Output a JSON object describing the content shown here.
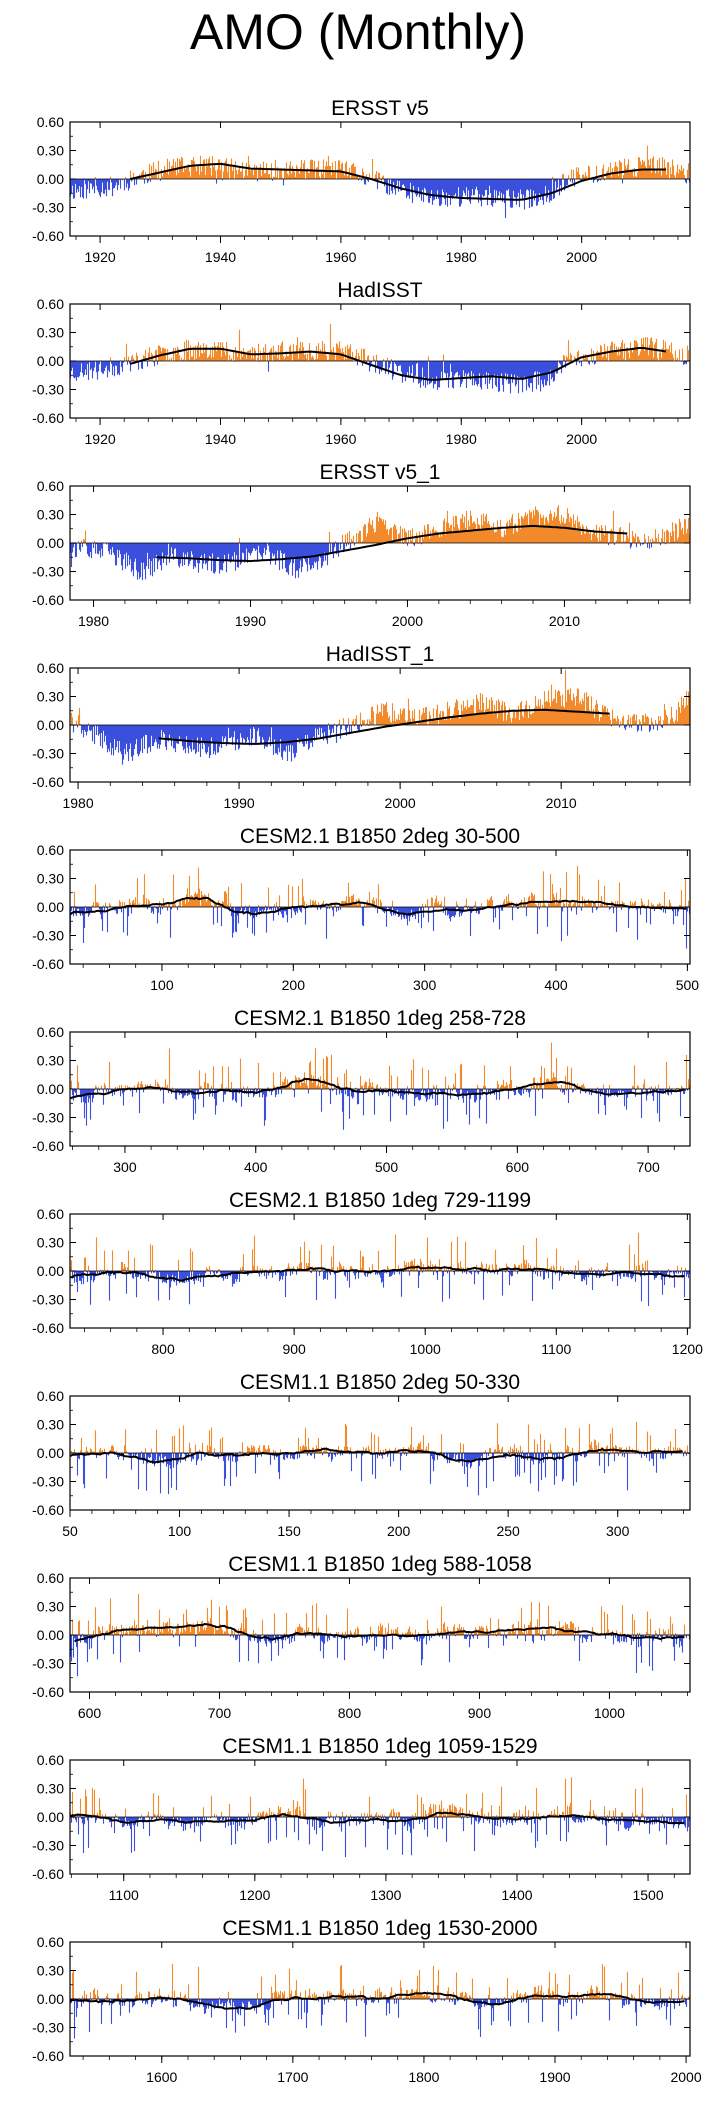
{
  "title": "AMO (Monthly)",
  "colors": {
    "positive": "#f28a2b",
    "negative": "#3a4fdc",
    "smooth": "#000000",
    "axis": "#000000"
  },
  "chart_data": [
    {
      "type": "bar",
      "title": "ERSST v5",
      "kind": "obs",
      "seed": 11,
      "xlim": [
        1915,
        2018
      ],
      "ylim": [
        -0.6,
        0.6
      ],
      "yticks": [
        0.6,
        0.3,
        0.0,
        -0.3,
        -0.6
      ],
      "yticklabels": [
        "0.60",
        "0.30",
        "0.00",
        "-0.30",
        "-0.60"
      ],
      "xticks": [
        1920,
        1940,
        1960,
        1980,
        2000
      ],
      "xticklabels": [
        "1920",
        "1940",
        "1960",
        "1980",
        "2000"
      ],
      "smooth_span": [
        1925,
        2014
      ],
      "trend": [
        [
          1915,
          -0.12
        ],
        [
          1922,
          -0.08
        ],
        [
          1926,
          0.02
        ],
        [
          1932,
          0.12
        ],
        [
          1938,
          0.14
        ],
        [
          1945,
          0.08
        ],
        [
          1952,
          0.1
        ],
        [
          1958,
          0.1
        ],
        [
          1962,
          0.07
        ],
        [
          1966,
          -0.02
        ],
        [
          1970,
          -0.12
        ],
        [
          1975,
          -0.2
        ],
        [
          1980,
          -0.18
        ],
        [
          1986,
          -0.2
        ],
        [
          1990,
          -0.22
        ],
        [
          1994,
          -0.18
        ],
        [
          1998,
          0.0
        ],
        [
          2002,
          0.06
        ],
        [
          2006,
          0.1
        ],
        [
          2010,
          0.14
        ],
        [
          2014,
          0.12
        ],
        [
          2018,
          0.05
        ]
      ],
      "smooth": [
        [
          1925,
          0.0
        ],
        [
          1930,
          0.07
        ],
        [
          1935,
          0.14
        ],
        [
          1940,
          0.16
        ],
        [
          1945,
          0.11
        ],
        [
          1950,
          0.1
        ],
        [
          1955,
          0.09
        ],
        [
          1960,
          0.08
        ],
        [
          1965,
          0.0
        ],
        [
          1970,
          -0.1
        ],
        [
          1975,
          -0.17
        ],
        [
          1980,
          -0.2
        ],
        [
          1985,
          -0.21
        ],
        [
          1990,
          -0.22
        ],
        [
          1995,
          -0.15
        ],
        [
          2000,
          -0.02
        ],
        [
          2005,
          0.06
        ],
        [
          2010,
          0.1
        ],
        [
          2014,
          0.1
        ]
      ]
    },
    {
      "type": "bar",
      "title": "HadISST",
      "kind": "obs",
      "seed": 23,
      "xlim": [
        1915,
        2018
      ],
      "ylim": [
        -0.6,
        0.6
      ],
      "yticks": [
        0.6,
        0.3,
        0.0,
        -0.3,
        -0.6
      ],
      "yticklabels": [
        "0.60",
        "0.30",
        "0.00",
        "-0.30",
        "-0.60"
      ],
      "xticks": [
        1920,
        1940,
        1960,
        1980,
        2000
      ],
      "xticklabels": [
        "1920",
        "1940",
        "1960",
        "1980",
        "2000"
      ],
      "smooth_span": [
        1925,
        2014
      ],
      "trend": [
        [
          1915,
          -0.12
        ],
        [
          1920,
          -0.1
        ],
        [
          1926,
          0.0
        ],
        [
          1932,
          0.1
        ],
        [
          1938,
          0.14
        ],
        [
          1944,
          0.08
        ],
        [
          1950,
          0.1
        ],
        [
          1958,
          0.12
        ],
        [
          1962,
          0.08
        ],
        [
          1966,
          -0.04
        ],
        [
          1970,
          -0.12
        ],
        [
          1975,
          -0.2
        ],
        [
          1980,
          -0.18
        ],
        [
          1986,
          -0.22
        ],
        [
          1990,
          -0.24
        ],
        [
          1994,
          -0.2
        ],
        [
          1998,
          0.02
        ],
        [
          2002,
          0.06
        ],
        [
          2006,
          0.12
        ],
        [
          2010,
          0.16
        ],
        [
          2014,
          0.12
        ],
        [
          2018,
          0.05
        ]
      ],
      "smooth": [
        [
          1925,
          -0.03
        ],
        [
          1930,
          0.06
        ],
        [
          1935,
          0.13
        ],
        [
          1940,
          0.13
        ],
        [
          1945,
          0.07
        ],
        [
          1950,
          0.08
        ],
        [
          1955,
          0.1
        ],
        [
          1960,
          0.07
        ],
        [
          1965,
          -0.04
        ],
        [
          1970,
          -0.15
        ],
        [
          1975,
          -0.2
        ],
        [
          1980,
          -0.18
        ],
        [
          1985,
          -0.16
        ],
        [
          1990,
          -0.19
        ],
        [
          1995,
          -0.12
        ],
        [
          2000,
          0.04
        ],
        [
          2005,
          0.1
        ],
        [
          2010,
          0.14
        ],
        [
          2014,
          0.1
        ]
      ]
    },
    {
      "type": "bar",
      "title": "ERSST v5_1",
      "kind": "obs",
      "seed": 37,
      "xlim": [
        1978.5,
        2018
      ],
      "ylim": [
        -0.6,
        0.6
      ],
      "yticks": [
        0.6,
        0.3,
        0.0,
        -0.3,
        -0.6
      ],
      "yticklabels": [
        "0.60",
        "0.30",
        "0.00",
        "-0.30",
        "-0.60"
      ],
      "xticks": [
        1980,
        1990,
        2000,
        2010
      ],
      "xticklabels": [
        "1980",
        "1990",
        "2000",
        "2010"
      ],
      "smooth_span": [
        1984,
        2014
      ],
      "trend": [
        [
          1978.5,
          -0.05
        ],
        [
          1981,
          -0.1
        ],
        [
          1983,
          -0.3
        ],
        [
          1985,
          -0.15
        ],
        [
          1988,
          -0.25
        ],
        [
          1991,
          -0.1
        ],
        [
          1993,
          -0.28
        ],
        [
          1995,
          -0.12
        ],
        [
          1996,
          0.0
        ],
        [
          1998,
          0.2
        ],
        [
          2000,
          0.05
        ],
        [
          2002,
          0.15
        ],
        [
          2004,
          0.25
        ],
        [
          2006,
          0.15
        ],
        [
          2008,
          0.28
        ],
        [
          2010,
          0.3
        ],
        [
          2012,
          0.1
        ],
        [
          2014,
          0.05
        ],
        [
          2016,
          0.05
        ],
        [
          2018,
          0.2
        ]
      ],
      "smooth": [
        [
          1984,
          -0.15
        ],
        [
          1986,
          -0.16
        ],
        [
          1988,
          -0.18
        ],
        [
          1990,
          -0.19
        ],
        [
          1992,
          -0.17
        ],
        [
          1994,
          -0.14
        ],
        [
          1996,
          -0.08
        ],
        [
          1998,
          -0.02
        ],
        [
          2000,
          0.05
        ],
        [
          2002,
          0.1
        ],
        [
          2004,
          0.13
        ],
        [
          2006,
          0.16
        ],
        [
          2008,
          0.18
        ],
        [
          2010,
          0.16
        ],
        [
          2012,
          0.12
        ],
        [
          2014,
          0.1
        ]
      ]
    },
    {
      "type": "bar",
      "title": "HadISST_1",
      "kind": "obs",
      "seed": 41,
      "xlim": [
        1979.5,
        2018
      ],
      "ylim": [
        -0.6,
        0.6
      ],
      "yticks": [
        0.6,
        0.3,
        0.0,
        -0.3,
        -0.6
      ],
      "yticklabels": [
        "0.60",
        "0.30",
        "0.00",
        "-0.30",
        "-0.60"
      ],
      "xticks": [
        1980,
        1990,
        2000,
        2010
      ],
      "xticklabels": [
        "1980",
        "1990",
        "2000",
        "2010"
      ],
      "smooth_span": [
        1985,
        2013
      ],
      "trend": [
        [
          1979.5,
          0.05
        ],
        [
          1981,
          -0.1
        ],
        [
          1983,
          -0.3
        ],
        [
          1985,
          -0.15
        ],
        [
          1988,
          -0.25
        ],
        [
          1991,
          -0.1
        ],
        [
          1993,
          -0.3
        ],
        [
          1995,
          -0.12
        ],
        [
          1997,
          0.0
        ],
        [
          1999,
          0.15
        ],
        [
          2001,
          0.05
        ],
        [
          2003,
          0.15
        ],
        [
          2005,
          0.22
        ],
        [
          2007,
          0.12
        ],
        [
          2009,
          0.25
        ],
        [
          2011,
          0.3
        ],
        [
          2013,
          0.08
        ],
        [
          2015,
          0.0
        ],
        [
          2017,
          0.1
        ],
        [
          2018,
          0.3
        ]
      ],
      "smooth": [
        [
          1985,
          -0.14
        ],
        [
          1987,
          -0.17
        ],
        [
          1989,
          -0.19
        ],
        [
          1991,
          -0.2
        ],
        [
          1993,
          -0.18
        ],
        [
          1995,
          -0.14
        ],
        [
          1997,
          -0.08
        ],
        [
          1999,
          -0.02
        ],
        [
          2001,
          0.03
        ],
        [
          2003,
          0.08
        ],
        [
          2005,
          0.12
        ],
        [
          2007,
          0.15
        ],
        [
          2009,
          0.16
        ],
        [
          2011,
          0.14
        ],
        [
          2013,
          0.12
        ]
      ]
    },
    {
      "type": "bar",
      "title": "CESM2.1 B1850 2deg 30-500",
      "kind": "model",
      "seed": 53,
      "xlim": [
        30,
        502
      ],
      "ylim": [
        -0.6,
        0.6
      ],
      "yticks": [
        0.6,
        0.3,
        0.0,
        -0.3,
        -0.6
      ],
      "yticklabels": [
        "0.60",
        "0.30",
        "0.00",
        "-0.30",
        "-0.60"
      ],
      "xticks": [
        100,
        200,
        300,
        400,
        500
      ],
      "xticklabels": [
        "100",
        "200",
        "300",
        "400",
        "500"
      ],
      "smooth_span": [
        30,
        500
      ]
    },
    {
      "type": "bar",
      "title": "CESM2.1 B1850 1deg 258-728",
      "kind": "model",
      "seed": 67,
      "xlim": [
        258,
        732
      ],
      "ylim": [
        -0.6,
        0.6
      ],
      "yticks": [
        0.6,
        0.3,
        0.0,
        -0.3,
        -0.6
      ],
      "yticklabels": [
        "0.60",
        "0.30",
        "0.00",
        "-0.30",
        "-0.60"
      ],
      "xticks": [
        300,
        400,
        500,
        600,
        700
      ],
      "xticklabels": [
        "300",
        "400",
        "500",
        "600",
        "700"
      ],
      "smooth_span": [
        258,
        728
      ]
    },
    {
      "type": "bar",
      "title": "CESM2.1 B1850 1deg 729-1199",
      "kind": "model",
      "seed": 79,
      "xlim": [
        729,
        1202
      ],
      "ylim": [
        -0.6,
        0.6
      ],
      "yticks": [
        0.6,
        0.3,
        0.0,
        -0.3,
        -0.6
      ],
      "yticklabels": [
        "0.60",
        "0.30",
        "0.00",
        "-0.30",
        "-0.60"
      ],
      "xticks": [
        800,
        900,
        1000,
        1100,
        1200
      ],
      "xticklabels": [
        "800",
        "900",
        "1000",
        "1100",
        "1200"
      ],
      "smooth_span": [
        729,
        1199
      ]
    },
    {
      "type": "bar",
      "title": "CESM1.1 B1850 2deg 50-330",
      "kind": "model",
      "seed": 83,
      "xlim": [
        50,
        333
      ],
      "ylim": [
        -0.6,
        0.6
      ],
      "yticks": [
        0.6,
        0.3,
        0.0,
        -0.3,
        -0.6
      ],
      "yticklabels": [
        "0.60",
        "0.30",
        "0.00",
        "-0.30",
        "-0.60"
      ],
      "xticks": [
        50,
        100,
        150,
        200,
        250,
        300
      ],
      "xticklabels": [
        "50",
        "100",
        "150",
        "200",
        "250",
        "300"
      ],
      "smooth_span": [
        50,
        330
      ]
    },
    {
      "type": "bar",
      "title": "CESM1.1 B1850 1deg 588-1058",
      "kind": "model",
      "seed": 97,
      "xlim": [
        585,
        1062
      ],
      "ylim": [
        -0.6,
        0.6
      ],
      "yticks": [
        0.6,
        0.3,
        0.0,
        -0.3,
        -0.6
      ],
      "yticklabels": [
        "0.60",
        "0.30",
        "0.00",
        "-0.30",
        "-0.60"
      ],
      "xticks": [
        600,
        700,
        800,
        900,
        1000
      ],
      "xticklabels": [
        "600",
        "700",
        "800",
        "900",
        "1000"
      ],
      "smooth_span": [
        588,
        1058
      ]
    },
    {
      "type": "bar",
      "title": "CESM1.1 B1850 1deg 1059-1529",
      "kind": "model",
      "seed": 101,
      "xlim": [
        1059,
        1532
      ],
      "ylim": [
        -0.6,
        0.6
      ],
      "yticks": [
        0.6,
        0.3,
        0.0,
        -0.3,
        -0.6
      ],
      "yticklabels": [
        "0.60",
        "0.30",
        "0.00",
        "-0.30",
        "-0.60"
      ],
      "xticks": [
        1100,
        1200,
        1300,
        1400,
        1500
      ],
      "xticklabels": [
        "1100",
        "1200",
        "1300",
        "1400",
        "1500"
      ],
      "smooth_span": [
        1059,
        1529
      ]
    },
    {
      "type": "bar",
      "title": "CESM1.1 B1850 1deg 1530-2000",
      "kind": "model",
      "seed": 113,
      "xlim": [
        1530,
        2003
      ],
      "ylim": [
        -0.6,
        0.6
      ],
      "yticks": [
        0.6,
        0.3,
        0.0,
        -0.3,
        -0.6
      ],
      "yticklabels": [
        "0.60",
        "0.30",
        "0.00",
        "-0.30",
        "-0.60"
      ],
      "xticks": [
        1600,
        1700,
        1800,
        1900,
        2000
      ],
      "xticklabels": [
        "1600",
        "1700",
        "1800",
        "1900",
        "2000"
      ],
      "smooth_span": [
        1530,
        2000
      ]
    }
  ]
}
